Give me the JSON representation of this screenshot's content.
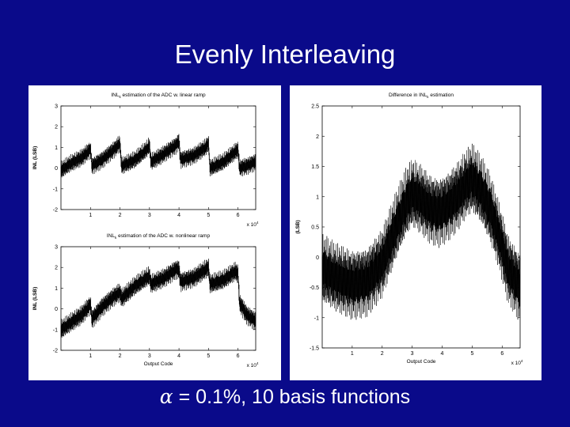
{
  "slide": {
    "title": "Evenly Interleaving",
    "caption_symbol": "α",
    "caption_text": " = 0.1%, 10 basis functions"
  },
  "chart_data": [
    {
      "type": "line",
      "title_pre": "INL",
      "title_sub": "k",
      "title_post": " estimation of the ADC w. linear ramp",
      "xlabel": "",
      "ylabel": "INL (LSB)",
      "xlim": [
        0,
        6.6
      ],
      "ylim": [
        -2,
        3
      ],
      "xticks": [
        1,
        2,
        3,
        4,
        5,
        6
      ],
      "yticks": [
        -2,
        -1,
        0,
        1,
        2,
        3
      ],
      "x_multiplier": "x 10",
      "x_multiplier_exp": "4",
      "grid": false,
      "series": [
        {
          "color": "#000000",
          "x": [
            0.0,
            0.3,
            0.7,
            1.0,
            1.05,
            1.4,
            1.8,
            2.0,
            2.05,
            2.5,
            2.9,
            3.0,
            3.05,
            3.4,
            3.9,
            4.0,
            4.05,
            4.5,
            4.9,
            5.0,
            5.05,
            5.5,
            6.0,
            6.05,
            6.3,
            6.6
          ],
          "y": [
            -0.1,
            0.2,
            0.5,
            0.9,
            0.1,
            0.4,
            0.9,
            1.2,
            0.1,
            0.4,
            0.9,
            1.1,
            0.3,
            0.6,
            1.1,
            1.3,
            0.4,
            0.6,
            1.0,
            1.2,
            0.0,
            0.3,
            0.9,
            0.0,
            0.1,
            0.3
          ],
          "band": 0.45
        }
      ]
    },
    {
      "type": "line",
      "title_pre": "INL",
      "title_sub": "k",
      "title_post": " estimation of the ADC w. nonlinear ramp",
      "xlabel": "Output Code",
      "ylabel": "INL (LSB)",
      "xlim": [
        0,
        6.6
      ],
      "ylim": [
        -2,
        3
      ],
      "xticks": [
        1,
        2,
        3,
        4,
        5,
        6
      ],
      "yticks": [
        -2,
        -1,
        0,
        1,
        2,
        3
      ],
      "x_multiplier": "x 10",
      "x_multiplier_exp": "4",
      "grid": false,
      "series": [
        {
          "color": "#000000",
          "x": [
            0.0,
            0.3,
            0.7,
            1.0,
            1.05,
            1.4,
            1.8,
            2.0,
            2.05,
            2.5,
            2.9,
            3.0,
            3.05,
            3.5,
            3.9,
            4.0,
            4.05,
            4.5,
            4.9,
            5.0,
            5.05,
            5.5,
            5.9,
            6.0,
            6.05,
            6.3,
            6.6
          ],
          "y": [
            -1.0,
            -0.7,
            -0.3,
            0.2,
            -0.5,
            0.1,
            0.6,
            0.8,
            0.5,
            1.1,
            1.5,
            1.6,
            1.2,
            1.5,
            1.9,
            1.9,
            1.3,
            1.5,
            1.9,
            2.0,
            1.2,
            1.4,
            1.8,
            1.7,
            0.3,
            -0.3,
            -0.6
          ],
          "band": 0.5
        }
      ]
    },
    {
      "type": "line",
      "title_pre": "Difference in INL",
      "title_sub": "k",
      "title_post": " estimation",
      "xlabel": "Output Code",
      "ylabel": "(LSB)",
      "xlim": [
        0,
        6.6
      ],
      "ylim": [
        -1.5,
        2.5
      ],
      "xticks": [
        1,
        2,
        3,
        4,
        5,
        6
      ],
      "yticks": [
        -1.5,
        -1,
        -0.5,
        0,
        0.5,
        1,
        1.5,
        2,
        2.5
      ],
      "x_multiplier": "x 10",
      "x_multiplier_exp": "4",
      "grid": false,
      "series": [
        {
          "color": "#000000",
          "x": [
            0.0,
            0.5,
            1.0,
            1.5,
            2.0,
            2.5,
            2.8,
            3.0,
            3.3,
            3.6,
            3.9,
            4.2,
            4.5,
            4.8,
            5.0,
            5.3,
            5.6,
            5.9,
            6.2,
            6.6
          ],
          "y": [
            -0.2,
            -0.35,
            -0.45,
            -0.4,
            -0.1,
            0.55,
            0.9,
            1.05,
            0.95,
            0.8,
            0.75,
            0.85,
            1.0,
            1.2,
            1.3,
            1.1,
            0.8,
            0.35,
            -0.2,
            -0.5
          ],
          "band": 0.6
        }
      ]
    }
  ]
}
